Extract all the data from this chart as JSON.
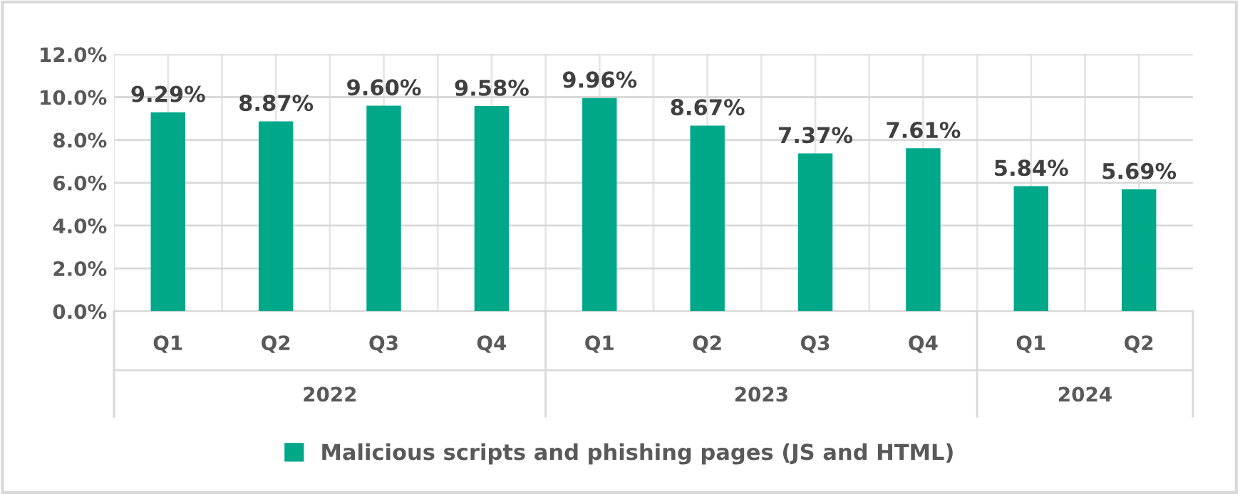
{
  "chart_data": {
    "type": "bar",
    "categories": [
      "Q1",
      "Q2",
      "Q3",
      "Q4",
      "Q1",
      "Q2",
      "Q3",
      "Q4",
      "Q1",
      "Q2"
    ],
    "annotations": [
      "2022",
      "2023",
      "2024"
    ],
    "series": [
      {
        "name": "Malicious scripts and phishing pages (JS and HTML)",
        "color": "#00a88a",
        "values": [
          9.29,
          8.87,
          9.6,
          9.58,
          9.96,
          8.67,
          7.37,
          7.61,
          5.84,
          5.69
        ],
        "value_labels": [
          "9.29%",
          "8.87%",
          "9.60%",
          "9.58%",
          "9.96%",
          "8.67%",
          "7.37%",
          "7.61%",
          "5.84%",
          "5.69%"
        ]
      }
    ],
    "ylim": [
      0,
      12
    ],
    "yticks": [
      {
        "value": 0,
        "label": "0.0%"
      },
      {
        "value": 2,
        "label": "2.0%"
      },
      {
        "value": 4,
        "label": "4.0%"
      },
      {
        "value": 6,
        "label": "6.0%"
      },
      {
        "value": 8,
        "label": "8.0%"
      },
      {
        "value": 10,
        "label": "10.0%"
      },
      {
        "value": 12,
        "label": "12.0%"
      }
    ],
    "grid": true,
    "legend": "bottom"
  }
}
